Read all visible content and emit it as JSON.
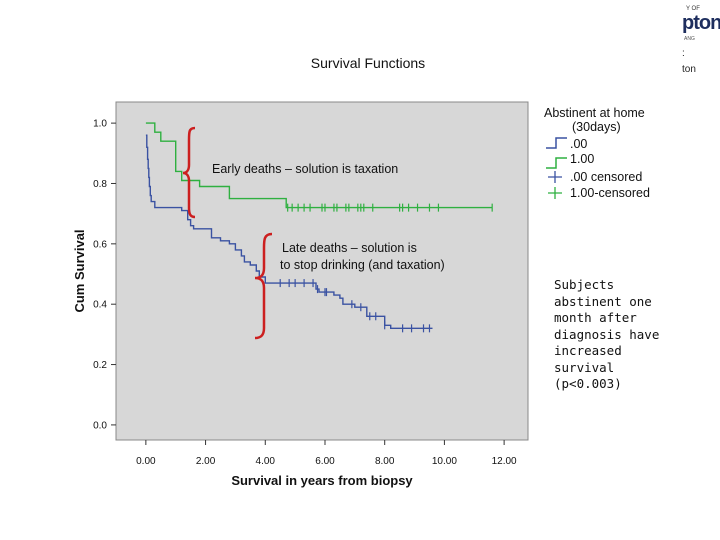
{
  "chart_data": {
    "type": "line",
    "subtype": "kaplan-meier step survival curve",
    "title": "Survival Functions",
    "xlabel": "Survival in years from biopsy",
    "ylabel": "Cum Survival",
    "xlim": [
      -1.0,
      12.8
    ],
    "ylim": [
      -0.05,
      1.07
    ],
    "x_ticks": [
      "0.00",
      "2.00",
      "4.00",
      "6.00",
      "8.00",
      "10.00",
      "12.00"
    ],
    "y_ticks": [
      "0.0",
      "0.2",
      "0.4",
      "0.6",
      "0.8",
      "1.0"
    ],
    "legend": {
      "title_line1": "Abstinent at home",
      "title_line2": "(30days)",
      "entries": [
        ".00",
        "1.00",
        ".00 censored",
        "1.00-censored"
      ],
      "placement": "right"
    },
    "series": [
      {
        "name": ".00",
        "color": "#3a52a2",
        "steps": [
          [
            0.0,
            0.96
          ],
          [
            0.03,
            0.92
          ],
          [
            0.06,
            0.88
          ],
          [
            0.08,
            0.85
          ],
          [
            0.1,
            0.82
          ],
          [
            0.12,
            0.79
          ],
          [
            0.15,
            0.76
          ],
          [
            0.18,
            0.74
          ],
          [
            0.3,
            0.72
          ],
          [
            1.2,
            0.71
          ],
          [
            1.4,
            0.68
          ],
          [
            1.5,
            0.66
          ],
          [
            1.6,
            0.65
          ],
          [
            2.2,
            0.62
          ],
          [
            2.5,
            0.61
          ],
          [
            2.8,
            0.6
          ],
          [
            3.0,
            0.58
          ],
          [
            3.2,
            0.56
          ],
          [
            3.3,
            0.54
          ],
          [
            3.5,
            0.53
          ],
          [
            3.7,
            0.51
          ],
          [
            3.8,
            0.49
          ],
          [
            4.0,
            0.47
          ],
          [
            5.7,
            0.45
          ],
          [
            5.8,
            0.44
          ],
          [
            6.3,
            0.43
          ],
          [
            6.5,
            0.42
          ],
          [
            6.6,
            0.4
          ],
          [
            7.0,
            0.39
          ],
          [
            7.4,
            0.36
          ],
          [
            8.0,
            0.33
          ],
          [
            8.2,
            0.32
          ]
        ],
        "end_x": 9.6,
        "censored": [
          4.5,
          4.8,
          5.0,
          5.3,
          5.6,
          5.75,
          6.0,
          6.05,
          6.9,
          7.2,
          7.5,
          7.7,
          8.0,
          8.6,
          8.9,
          9.3,
          9.5
        ]
      },
      {
        "name": "1.00",
        "color": "#2fb040",
        "steps": [
          [
            0.0,
            1.0
          ],
          [
            0.3,
            0.97
          ],
          [
            0.5,
            0.94
          ],
          [
            1.0,
            0.84
          ],
          [
            1.2,
            0.81
          ],
          [
            1.8,
            0.79
          ],
          [
            2.8,
            0.75
          ],
          [
            4.7,
            0.72
          ]
        ],
        "end_x": 11.6,
        "censored": [
          4.75,
          4.9,
          5.1,
          5.3,
          5.5,
          5.9,
          6.0,
          6.3,
          6.4,
          6.7,
          6.8,
          7.1,
          7.2,
          7.3,
          7.6,
          8.5,
          8.6,
          8.8,
          9.1,
          9.5,
          9.8,
          11.6
        ]
      }
    ],
    "annotations": [
      {
        "text": "Early deaths – solution is taxation"
      },
      {
        "text_line1": "Late deaths – solution is",
        "text_line2": "to stop drinking (and taxation)"
      }
    ]
  },
  "side_note": "Subjects abstinent one month after diagnosis have increased survival (p<0.003)",
  "logo": {
    "line_top": "Y OF",
    "word": "pton",
    "line_small": "ANG",
    "line_colon": ":",
    "line_bottom": "ton"
  },
  "colors": {
    "plot_background": "#d7d7d7",
    "brace": "#cc1f1f",
    "axis": "#333333"
  }
}
